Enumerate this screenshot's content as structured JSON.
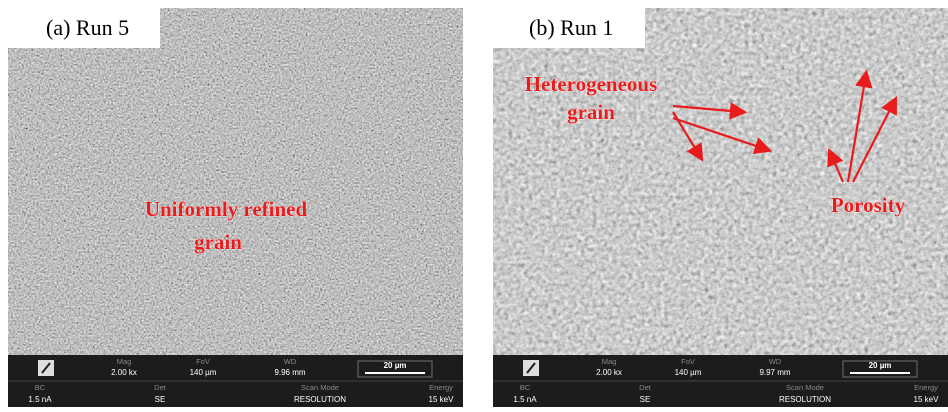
{
  "panels": [
    {
      "label": "(a) Run 5",
      "annotations": [
        {
          "lines": [
            "Uniformly refined",
            "grain"
          ]
        }
      ],
      "info": {
        "row1": [
          [
            "Mag",
            "2.00 kx"
          ],
          [
            "FoV",
            "140 µm"
          ],
          [
            "WD",
            "9.96 mm"
          ]
        ],
        "scale": "20 µm",
        "row2": [
          [
            "BC",
            "1.5 nA"
          ],
          [
            "Det",
            "SE"
          ],
          [
            "Scan Mode",
            "RESOLUTION"
          ],
          [
            "Energy",
            "15 keV"
          ]
        ]
      }
    },
    {
      "label": "(b) Run 1",
      "annotations": [
        {
          "lines": [
            "Heterogeneous",
            "grain"
          ]
        },
        {
          "lines": [
            "Porosity"
          ]
        }
      ],
      "info": {
        "row1": [
          [
            "Mag",
            "2.00 kx"
          ],
          [
            "FoV",
            "140 µm"
          ],
          [
            "WD",
            "9.97 mm"
          ]
        ],
        "scale": "20 µm",
        "row2": [
          [
            "BC",
            "1.5 nA"
          ],
          [
            "Det",
            "SE"
          ],
          [
            "Scan Mode",
            "RESOLUTION"
          ],
          [
            "Energy",
            "15 keV"
          ]
        ]
      }
    }
  ]
}
